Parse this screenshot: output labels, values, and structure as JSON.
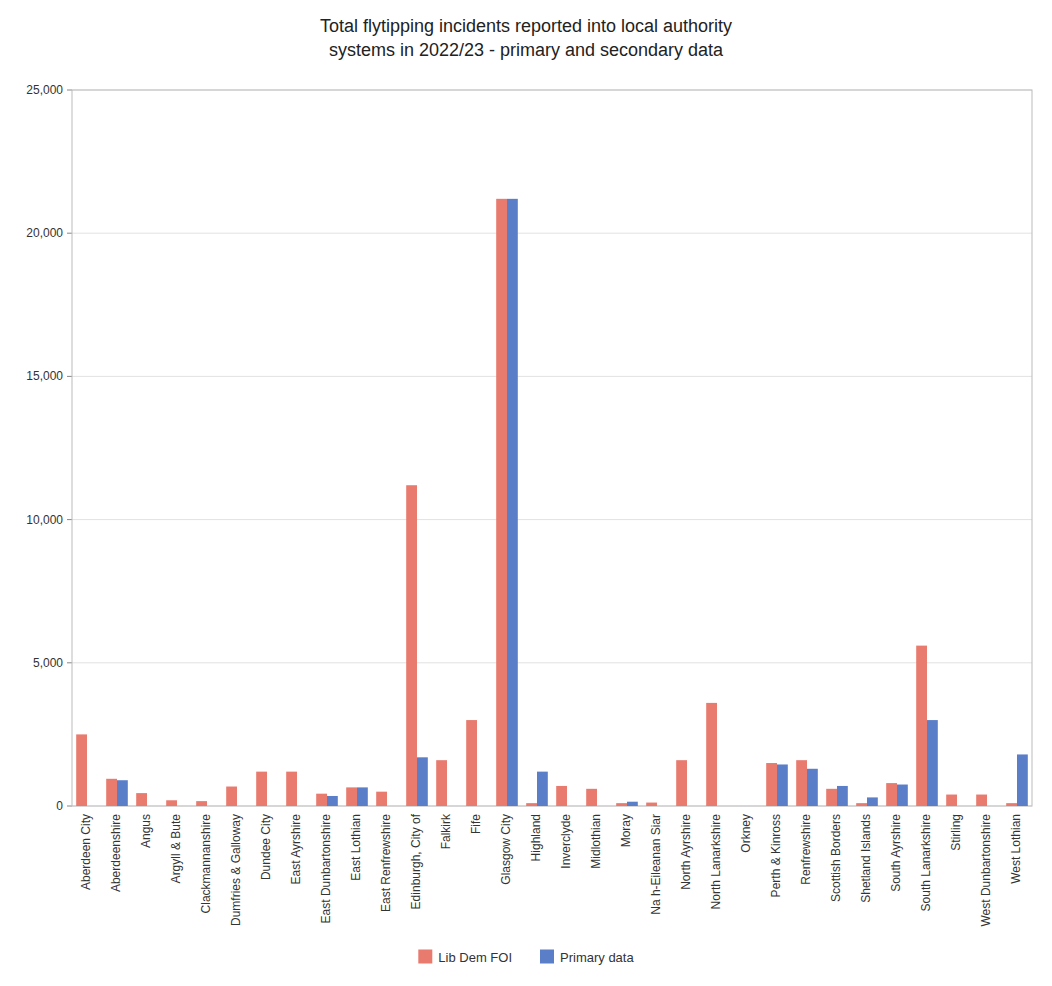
{
  "chart_data": {
    "type": "bar",
    "title": "Total flytipping incidents reported into local authority\nsystems in 2022/23 - primary and secondary data",
    "categories": [
      "Aberdeen City",
      "Aberdeenshire",
      "Angus",
      "Argyll & Bute",
      "Clackmannanshire",
      "Dumfries & Galloway",
      "Dundee City",
      "East Ayrshire",
      "East Dunbartonshire",
      "East Lothian",
      "East Renfrewshire",
      "Edinburgh, City of",
      "Falkirk",
      "Fife",
      "Glasgow City",
      "Highland",
      "Inverclyde",
      "Midlothian",
      "Moray",
      "Na h-Eileanan Siar",
      "North Ayrshire",
      "North Lanarkshire",
      "Orkney",
      "Perth & Kinross",
      "Renfrewshire",
      "Scottish Borders",
      "Shetland Islands",
      "South Ayrshire",
      "South Lanarkshire",
      "Stirling",
      "West Dunbartonshire",
      "West Lothian"
    ],
    "series": [
      {
        "name": "Lib Dem FOI",
        "color": "#e87a6e",
        "values": [
          2500,
          950,
          450,
          200,
          170,
          680,
          1200,
          1200,
          430,
          650,
          500,
          11200,
          1600,
          3000,
          21200,
          100,
          700,
          600,
          100,
          120,
          1600,
          3600,
          0,
          1500,
          1600,
          600,
          100,
          800,
          5600,
          400,
          400,
          100
        ]
      },
      {
        "name": "Primary data",
        "color": "#5b7ec9",
        "values": [
          0,
          900,
          0,
          0,
          0,
          0,
          0,
          0,
          350,
          650,
          0,
          1700,
          0,
          0,
          21200,
          1200,
          0,
          0,
          150,
          0,
          0,
          0,
          0,
          1450,
          1300,
          700,
          300,
          750,
          3000,
          0,
          0,
          1800
        ]
      }
    ],
    "ylim": [
      0,
      25000
    ],
    "yticks": [
      0,
      {
        "value": 5000,
        "label": "5,000"
      },
      {
        "value": 10000,
        "label": "10,000"
      },
      {
        "value": 15000,
        "label": "15,000"
      },
      {
        "value": 20000,
        "label": "20,000"
      },
      {
        "value": 25000,
        "label": "25,000"
      }
    ],
    "grid": true,
    "legend": "bottom"
  }
}
